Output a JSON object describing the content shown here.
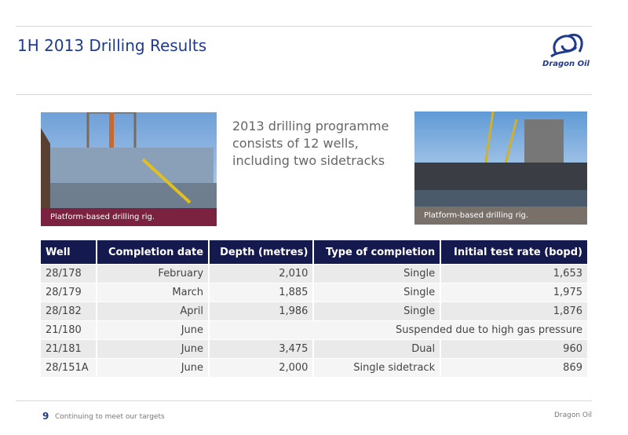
{
  "header": {
    "title": "1H 2013 Drilling Results",
    "logo_text": "Dragon Oil"
  },
  "photos": [
    {
      "caption": "Platform-based drilling rig."
    },
    {
      "caption": "Platform-based drilling rig."
    }
  ],
  "callout": [
    "2013 drilling programme",
    "consists of 12 wells,",
    "including two sidetracks"
  ],
  "table": {
    "columns": [
      "Well",
      "Completion date",
      "Depth (metres)",
      "Type of completion",
      "Initial test rate (bopd)"
    ],
    "rows": [
      [
        "28/178",
        "February",
        "2,010",
        "Single",
        "1,653"
      ],
      [
        "28/179",
        "March",
        "1,885",
        "Single",
        "1,975"
      ],
      [
        "28/182",
        "April",
        "1,986",
        "Single",
        "1,876"
      ],
      [
        "21/180",
        "June",
        "Suspended due to high gas pressure"
      ],
      [
        "21/181",
        "June",
        "3,475",
        "Dual",
        "960"
      ],
      [
        "28/151A",
        "June",
        "2,000",
        "Single sidetrack",
        "869"
      ]
    ]
  },
  "footer": {
    "page": "9",
    "subtitle": "Continuing to meet our targets",
    "company": "Dragon Oil"
  }
}
